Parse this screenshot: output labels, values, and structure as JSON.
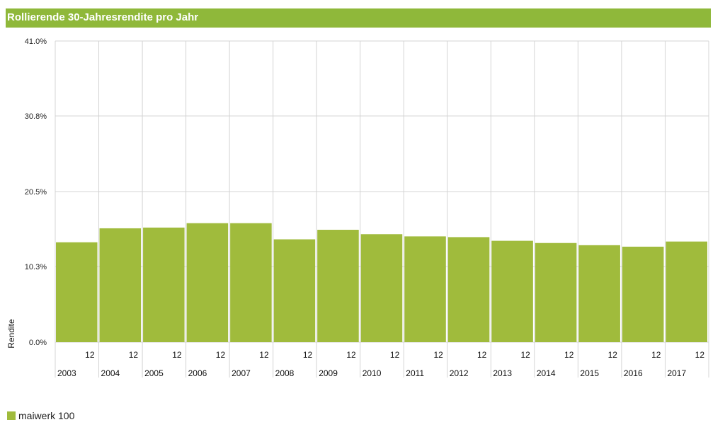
{
  "colors": {
    "title_bg": "#8fb83a",
    "bar": "#a0bb3c",
    "grid": "#d4d4d4"
  },
  "chart_data": {
    "type": "bar",
    "title": "Rollierende 30-Jahresrendite pro Jahr",
    "xlabel": "",
    "ylabel": "Rendite",
    "ylim": [
      0,
      41.0
    ],
    "y_ticks": [
      "0.0%",
      "10.3%",
      "20.5%",
      "30.8%",
      "41.0%"
    ],
    "y_tick_values": [
      0,
      10.3,
      20.5,
      30.8,
      41.0
    ],
    "categories": [
      "2003",
      "2004",
      "2005",
      "2006",
      "2007",
      "2008",
      "2009",
      "2010",
      "2011",
      "2012",
      "2013",
      "2014",
      "2015",
      "2016",
      "2017"
    ],
    "month_labels": [
      "12",
      "12",
      "12",
      "12",
      "12",
      "12",
      "12",
      "12",
      "12",
      "12",
      "12",
      "12",
      "12",
      "12",
      "12"
    ],
    "series": [
      {
        "name": "maiwerk 100",
        "values": [
          13.6,
          15.5,
          15.6,
          16.2,
          16.2,
          14.0,
          15.3,
          14.7,
          14.4,
          14.3,
          13.8,
          13.5,
          13.2,
          13.0,
          13.7
        ]
      }
    ],
    "grid": true,
    "legend": "bottom-left"
  }
}
